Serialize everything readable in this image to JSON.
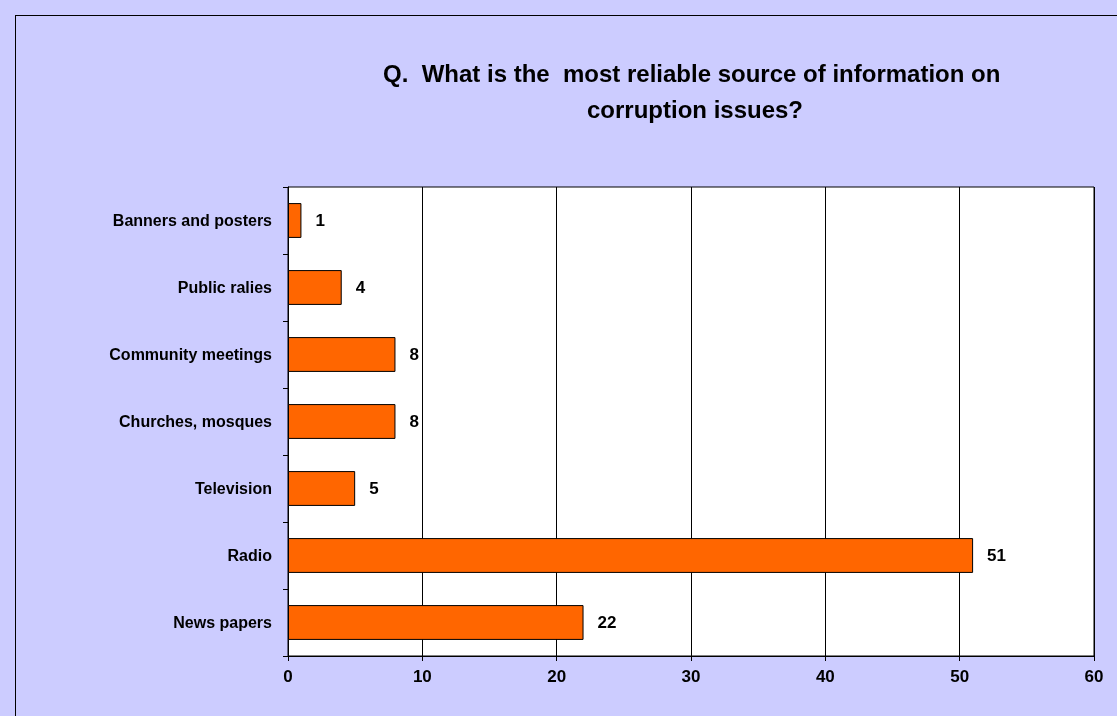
{
  "chart_data": {
    "type": "bar",
    "orientation": "horizontal",
    "title": "Q.  What is the  most reliable source of information on corruption issues?",
    "categories": [
      "Banners and posters",
      "Public ralies",
      "Community meetings",
      "Churches, mosques",
      "Television",
      "Radio",
      "News papers"
    ],
    "values": [
      1,
      4,
      8,
      8,
      5,
      51,
      22
    ],
    "color": "#ff6600",
    "xlim": [
      0,
      60
    ],
    "xticks": [
      0,
      10,
      20,
      30,
      40,
      50,
      60
    ],
    "grid": "x",
    "data_labels": true
  }
}
